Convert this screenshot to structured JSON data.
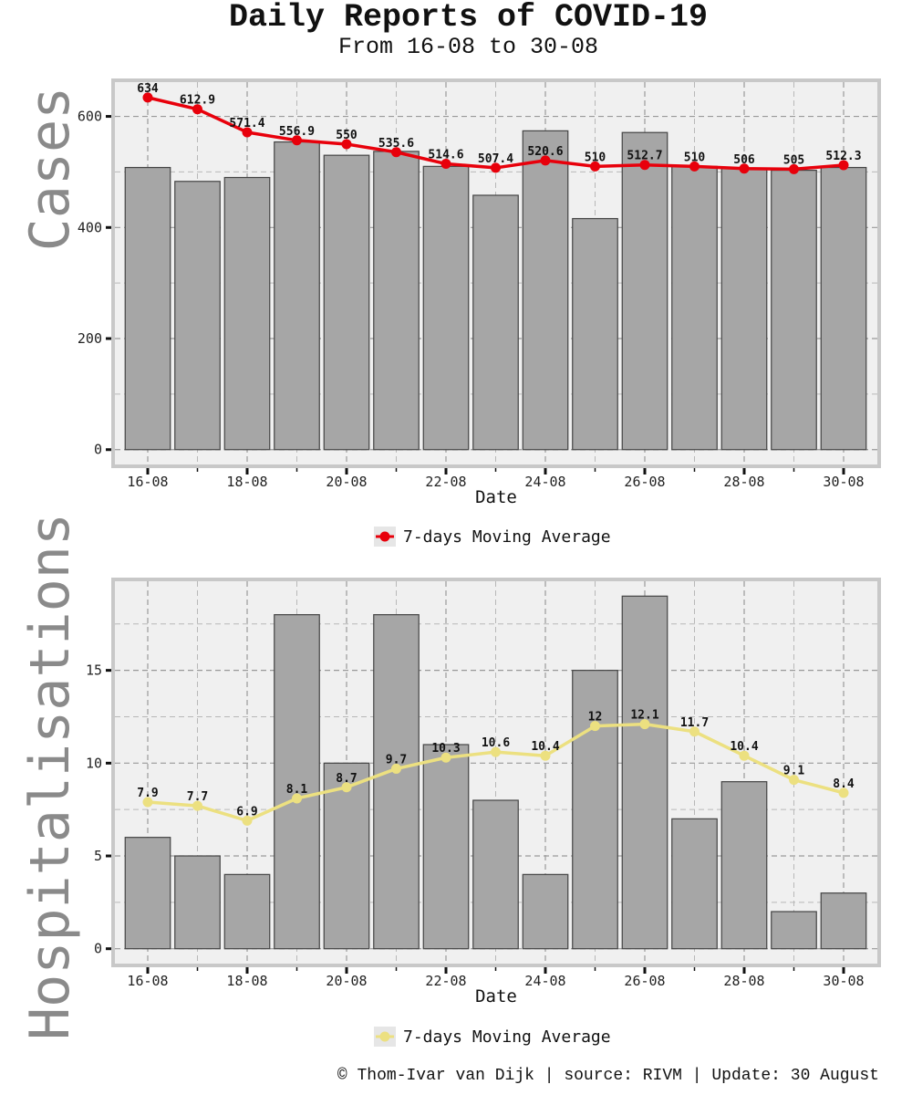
{
  "header": {
    "title": "Daily Reports of COVID-19",
    "subtitle": "From 16-08 to 30-08"
  },
  "footer": {
    "credit": "© Thom-Ivar van Dijk | source: RIVM | Update: 30 August"
  },
  "colors": {
    "bar_fill": "#a6a6a6",
    "bar_stroke": "#444444",
    "panel_bg": "#f0f0f0",
    "grid": "#999999",
    "cases_line": "#e8000b",
    "hosp_line": "#ece080",
    "big_ylabel": "#8a8a8a"
  },
  "chart_data": [
    {
      "type": "bar",
      "ylabel": "Cases",
      "xlabel": "Date",
      "categories": [
        "16-08",
        "17-08",
        "18-08",
        "19-08",
        "20-08",
        "21-08",
        "22-08",
        "23-08",
        "24-08",
        "25-08",
        "26-08",
        "27-08",
        "28-08",
        "29-08",
        "30-08"
      ],
      "xtick_labels": [
        "16-08",
        "18-08",
        "20-08",
        "22-08",
        "24-08",
        "26-08",
        "28-08",
        "30-08"
      ],
      "ylim": [
        -30,
        665
      ],
      "yticks": [
        0,
        200,
        400,
        600
      ],
      "grid": true,
      "legend_position": "bottom-center",
      "series": [
        {
          "kind": "bar",
          "values": [
            508,
            483,
            490,
            554,
            530,
            537,
            510,
            458,
            574,
            416,
            571,
            510,
            506,
            503,
            508
          ]
        },
        {
          "kind": "line",
          "name": "7-days Moving Average",
          "color": "#e8000b",
          "values": [
            634,
            612.9,
            571.4,
            556.9,
            550,
            535.6,
            514.6,
            507.4,
            520.6,
            510,
            512.7,
            510,
            506,
            505,
            512.3
          ],
          "labels": [
            "634",
            "612.9",
            "571.4",
            "556.9",
            "550",
            "535.6",
            "514.6",
            "507.4",
            "520.6",
            "510",
            "512.7",
            "510",
            "506",
            "505",
            "512.3"
          ]
        }
      ]
    },
    {
      "type": "bar",
      "ylabel": "Hospitalisations",
      "xlabel": "Date",
      "categories": [
        "16-08",
        "17-08",
        "18-08",
        "19-08",
        "20-08",
        "21-08",
        "22-08",
        "23-08",
        "24-08",
        "25-08",
        "26-08",
        "27-08",
        "28-08",
        "29-08",
        "30-08"
      ],
      "xtick_labels": [
        "16-08",
        "18-08",
        "20-08",
        "22-08",
        "24-08",
        "26-08",
        "28-08",
        "30-08"
      ],
      "ylim": [
        -0.9,
        19.9
      ],
      "yticks": [
        0,
        5,
        10,
        15
      ],
      "grid": true,
      "legend_position": "bottom-center",
      "series": [
        {
          "kind": "bar",
          "values": [
            6,
            5,
            4,
            18,
            10,
            18,
            11,
            8,
            4,
            15,
            19,
            7,
            9,
            2,
            3
          ]
        },
        {
          "kind": "line",
          "name": "7-days Moving Average",
          "color": "#ece080",
          "values": [
            7.9,
            7.7,
            6.9,
            8.1,
            8.7,
            9.7,
            10.3,
            10.6,
            10.4,
            12,
            12.1,
            11.7,
            10.4,
            9.1,
            8.4
          ],
          "labels": [
            "7.9",
            "7.7",
            "6.9",
            "8.1",
            "8.7",
            "9.7",
            "10.3",
            "10.6",
            "10.4",
            "12",
            "12.1",
            "11.7",
            "10.4",
            "9.1",
            "8.4"
          ]
        }
      ]
    }
  ]
}
